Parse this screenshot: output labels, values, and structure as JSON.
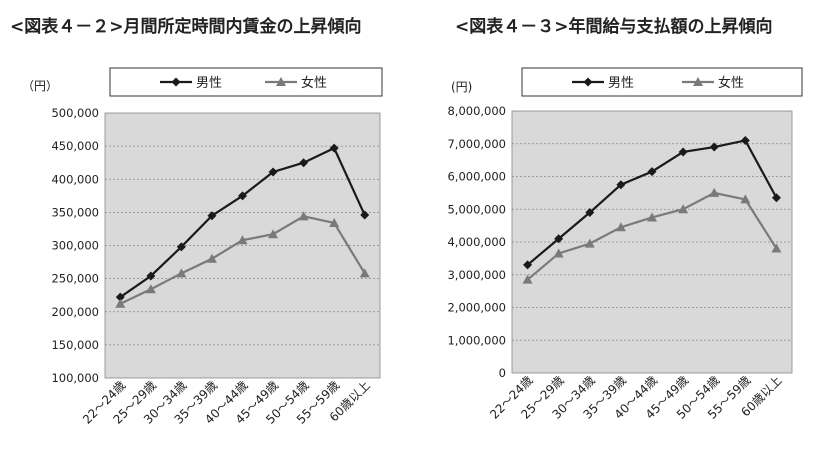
{
  "charts": [
    {
      "figure_title": "<図表４－２>月間所定時間内賃金の上昇傾向",
      "unit_label": "（円）",
      "legend": [
        "男性",
        "女性"
      ]
    },
    {
      "figure_title": "<図表４－３>年間給与支払額の上昇傾向",
      "unit_label": "(円)",
      "legend": [
        "男性",
        "女性"
      ]
    }
  ],
  "colors": {
    "male": "#1a1a1a",
    "female": "#7a7a7a",
    "plot_bg": "#d9d9d9",
    "grid": "#8a8a8a"
  },
  "chart_data": [
    {
      "type": "line",
      "title": "<図表４－２>月間所定時間内賃金の上昇傾向",
      "ylabel": "（円）",
      "categories": [
        "22～24歳",
        "25～29歳",
        "30～34歳",
        "35～39歳",
        "40～44歳",
        "45～49歳",
        "50～54歳",
        "55～59歳",
        "60歳以上"
      ],
      "ylim": [
        100000,
        500000
      ],
      "yticks": [
        100000,
        150000,
        200000,
        250000,
        300000,
        350000,
        400000,
        450000,
        500000
      ],
      "ytick_labels": [
        "100,000",
        "150,000",
        "200,000",
        "250,000",
        "300,000",
        "350,000",
        "400,000",
        "450,000",
        "500,000"
      ],
      "grid": true,
      "legend_position": "top",
      "series": [
        {
          "name": "男性",
          "marker": "diamond",
          "values": [
            222000,
            254000,
            298000,
            345000,
            375000,
            411000,
            425000,
            447000,
            346000
          ]
        },
        {
          "name": "女性",
          "marker": "triangle",
          "values": [
            212000,
            234000,
            258000,
            280000,
            308000,
            317000,
            344000,
            334000,
            258000
          ]
        }
      ]
    },
    {
      "type": "line",
      "title": "<図表４－３>年間給与支払額の上昇傾向",
      "ylabel": "(円)",
      "categories": [
        "22～24歳",
        "25～29歳",
        "30～34歳",
        "35～39歳",
        "40～44歳",
        "45～49歳",
        "50～54歳",
        "55～59歳",
        "60歳以上"
      ],
      "ylim": [
        0,
        8000000
      ],
      "yticks": [
        0,
        1000000,
        2000000,
        3000000,
        4000000,
        5000000,
        6000000,
        7000000,
        8000000
      ],
      "ytick_labels": [
        "0",
        "1,000,000",
        "2,000,000",
        "3,000,000",
        "4,000,000",
        "5,000,000",
        "6,000,000",
        "7,000,000",
        "8,000,000"
      ],
      "grid": true,
      "legend_position": "top",
      "series": [
        {
          "name": "男性",
          "marker": "diamond",
          "values": [
            3300000,
            4100000,
            4900000,
            5750000,
            6150000,
            6750000,
            6900000,
            7100000,
            5350000
          ]
        },
        {
          "name": "女性",
          "marker": "triangle",
          "values": [
            2850000,
            3650000,
            3950000,
            4450000,
            4750000,
            5000000,
            5500000,
            5300000,
            3800000
          ]
        }
      ]
    }
  ]
}
